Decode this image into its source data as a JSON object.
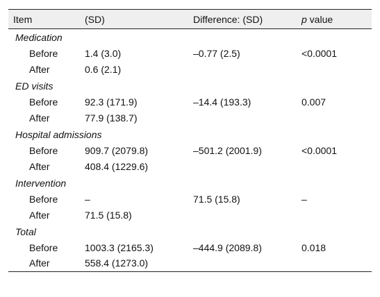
{
  "table": {
    "headers": {
      "item": "Item",
      "sd": "(SD)",
      "difference": "Difference: (SD)",
      "p_italic": "p",
      "p_rest": " value"
    },
    "groups": [
      {
        "name": "Medication",
        "rows": [
          {
            "label": "Before",
            "sd": "1.4 (3.0)",
            "difference": "–0.77 (2.5)",
            "p": "<0.0001"
          },
          {
            "label": "After",
            "sd": "0.6 (2.1)",
            "difference": "",
            "p": ""
          }
        ]
      },
      {
        "name": "ED visits",
        "rows": [
          {
            "label": "Before",
            "sd": "92.3 (171.9)",
            "difference": "–14.4 (193.3)",
            "p": "0.007"
          },
          {
            "label": "After",
            "sd": "77.9 (138.7)",
            "difference": "",
            "p": ""
          }
        ]
      },
      {
        "name": "Hospital admissions",
        "rows": [
          {
            "label": "Before",
            "sd": "909.7 (2079.8)",
            "difference": "–501.2 (2001.9)",
            "p": "<0.0001"
          },
          {
            "label": "After",
            "sd": "408.4 (1229.6)",
            "difference": "",
            "p": ""
          }
        ]
      },
      {
        "name": "Intervention",
        "rows": [
          {
            "label": "Before",
            "sd": "–",
            "difference": "71.5 (15.8)",
            "p": "–"
          },
          {
            "label": "After",
            "sd": "71.5 (15.8)",
            "difference": "",
            "p": ""
          }
        ]
      },
      {
        "name": "Total",
        "rows": [
          {
            "label": "Before",
            "sd": "1003.3 (2165.3)",
            "difference": "–444.9 (2089.8)",
            "p": "0.018"
          },
          {
            "label": "After",
            "sd": "558.4 (1273.0)",
            "difference": "",
            "p": ""
          }
        ]
      }
    ]
  }
}
